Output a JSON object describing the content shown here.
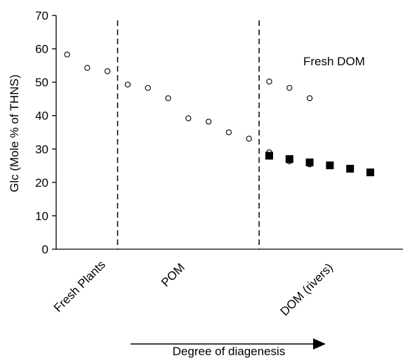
{
  "chart_data": {
    "type": "scatter",
    "title": "",
    "ylabel": "Glc (Mole % of THNS)",
    "xlabel": "Degree of diagenesis",
    "ylim": [
      0,
      70
    ],
    "yticks": [
      "0",
      "10",
      "20",
      "30",
      "40",
      "50",
      "60",
      "70"
    ],
    "grid": false,
    "category_labels": [
      "Fresh Plants",
      "POM",
      "DOM (rivers)"
    ],
    "annotations": [
      "Fresh DOM"
    ],
    "series": [
      {
        "marker": "open-circle",
        "points": [
          {
            "x": 1,
            "y": 58.3
          },
          {
            "x": 2,
            "y": 54.3
          },
          {
            "x": 3,
            "y": 53.3
          },
          {
            "x": 4,
            "y": 49.3
          },
          {
            "x": 5,
            "y": 48.3
          },
          {
            "x": 6,
            "y": 45.2
          },
          {
            "x": 7,
            "y": 39.2
          },
          {
            "x": 8,
            "y": 38.2
          },
          {
            "x": 9,
            "y": 35.0
          },
          {
            "x": 10,
            "y": 33.1
          },
          {
            "x": 11,
            "y": 50.2
          },
          {
            "x": 12,
            "y": 48.3
          },
          {
            "x": 13,
            "y": 45.2
          },
          {
            "x": 11,
            "y": 29.0
          },
          {
            "x": 12,
            "y": 26.3
          },
          {
            "x": 13,
            "y": 25.4
          }
        ]
      },
      {
        "marker": "filled-square",
        "points": [
          {
            "x": 11,
            "y": 28.0
          },
          {
            "x": 12,
            "y": 27.0
          },
          {
            "x": 13,
            "y": 26.0
          },
          {
            "x": 14,
            "y": 25.1
          },
          {
            "x": 15,
            "y": 24.1
          },
          {
            "x": 16,
            "y": 23.0
          }
        ]
      }
    ],
    "dividers_after_x": [
      3.5,
      10.5
    ],
    "colors": {
      "marker": "#000000",
      "axis": "#000000",
      "background": "#ffffff"
    }
  }
}
